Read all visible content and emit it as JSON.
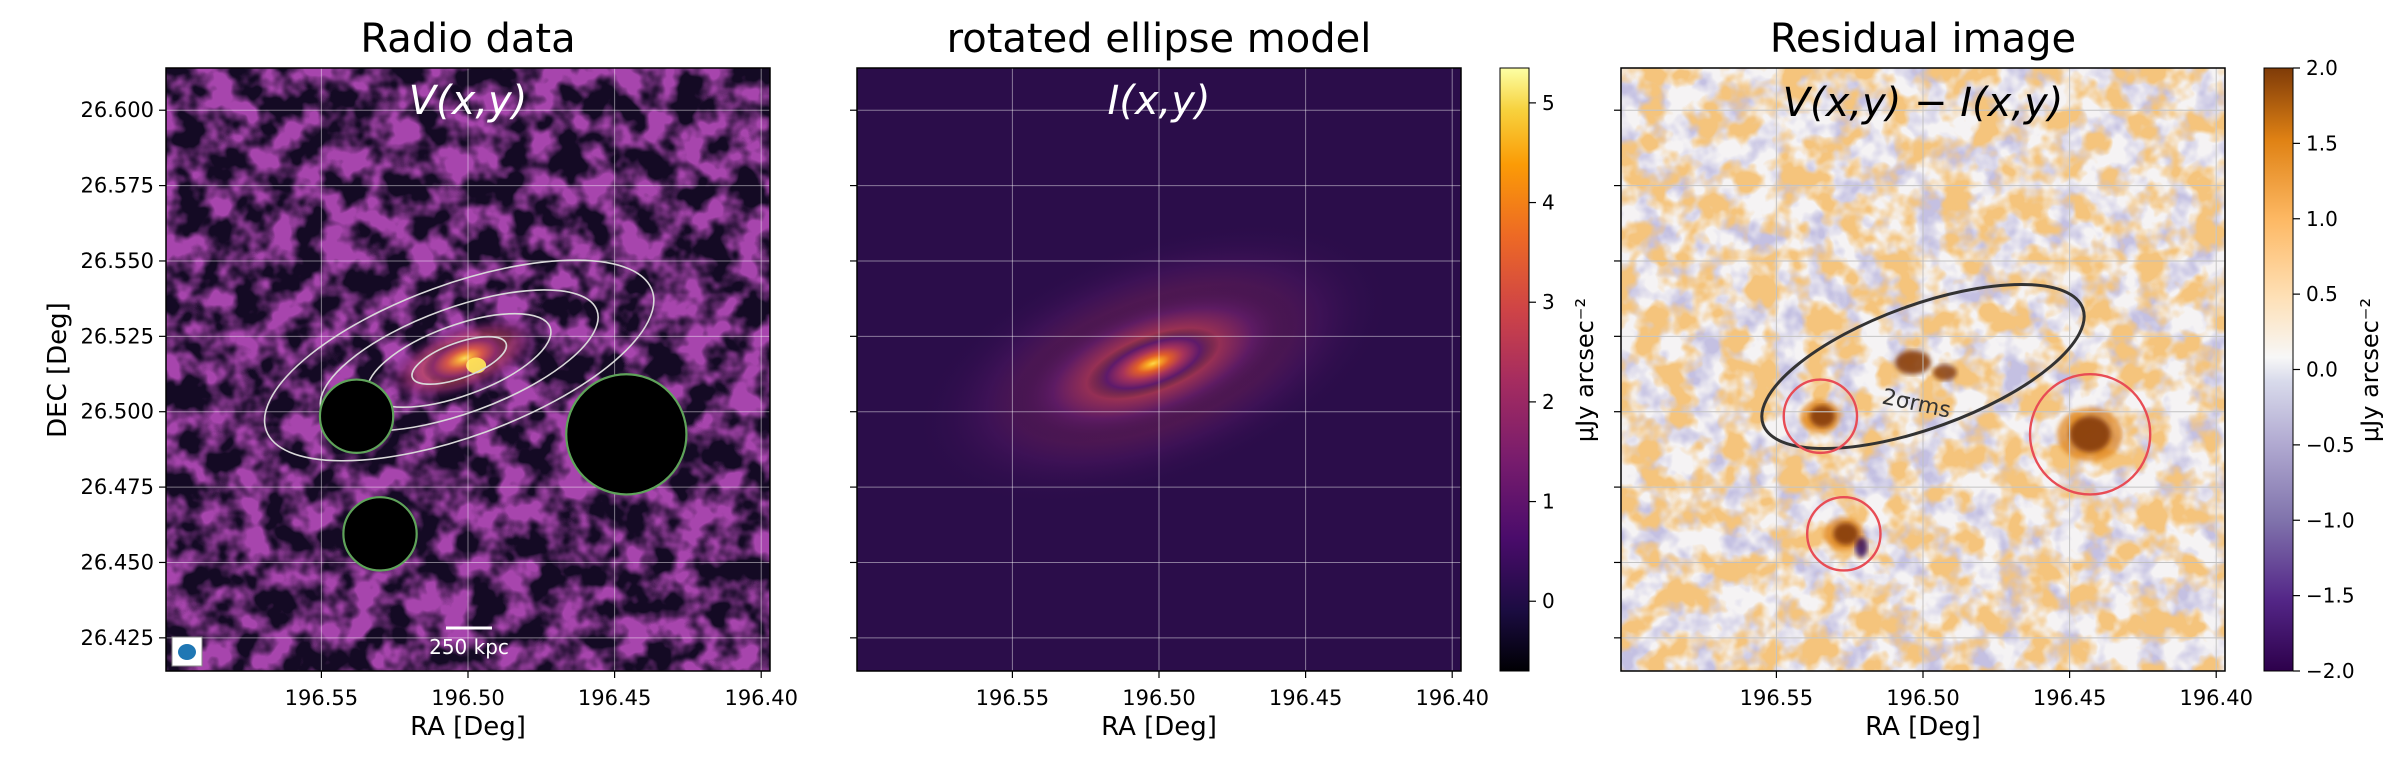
{
  "chart_data": [
    {
      "type": "heatmap",
      "title": "Radio data",
      "annotation": "V(x,y)",
      "xlabel": "RA [Deg]",
      "ylabel": "DEC [Deg]",
      "xlim": [
        196.603,
        196.397
      ],
      "ylim": [
        26.414,
        26.614
      ],
      "xticks": [
        196.55,
        196.5,
        196.45,
        196.4
      ],
      "xtick_labels": [
        "196.55",
        "196.50",
        "196.45",
        "196.40"
      ],
      "yticks": [
        26.425,
        26.45,
        26.475,
        26.5,
        26.525,
        26.55,
        26.575,
        26.6
      ],
      "ytick_labels": [
        "26.425",
        "26.450",
        "26.475",
        "26.500",
        "26.525",
        "26.550",
        "26.575",
        "26.600"
      ],
      "grid": true,
      "colormap": "inferno",
      "scalebar_label": "250 kpc",
      "contours": {
        "color": "#d9d9d9",
        "center": [
          196.503,
          26.517
        ],
        "angle_deg": -20,
        "radii": [
          [
            0.07,
            0.026
          ],
          [
            0.05,
            0.018
          ],
          [
            0.033,
            0.012
          ],
          [
            0.017,
            0.006
          ]
        ]
      },
      "masks": [
        {
          "ra": 196.538,
          "dec": 26.4985,
          "r": 0.0125,
          "color": "#5fa35a"
        },
        {
          "ra": 196.53,
          "dec": 26.4595,
          "r": 0.0125,
          "color": "#5fa35a"
        },
        {
          "ra": 196.446,
          "dec": 26.4925,
          "r": 0.0205,
          "color": "#5fa35a"
        }
      ],
      "beam_color": "#1f77b4"
    },
    {
      "type": "heatmap",
      "title": "rotated ellipse model",
      "annotation": "I(x,y)",
      "xlabel": "RA [Deg]",
      "xlim": [
        196.603,
        196.397
      ],
      "ylim": [
        26.414,
        26.614
      ],
      "xticks": [
        196.55,
        196.5,
        196.45,
        196.4
      ],
      "xtick_labels": [
        "196.55",
        "196.50",
        "196.45",
        "196.40"
      ],
      "grid": true,
      "colormap": "inferno",
      "model_center": [
        196.502,
        26.516
      ],
      "model_angle_deg": -20,
      "colorbar": {
        "label": "μJy arcsec⁻²",
        "range": [
          -0.7,
          5.35
        ],
        "ticks": [
          0,
          1,
          2,
          3,
          4,
          5
        ],
        "tick_labels": [
          "0",
          "1",
          "2",
          "3",
          "4",
          "5"
        ]
      }
    },
    {
      "type": "heatmap",
      "title": "Residual image",
      "annotation": "V(x,y) − I(x,y)",
      "xlabel": "RA [Deg]",
      "xlim": [
        196.603,
        196.397
      ],
      "ylim": [
        26.414,
        26.614
      ],
      "xticks": [
        196.55,
        196.5,
        196.45,
        196.4
      ],
      "xtick_labels": [
        "196.55",
        "196.50",
        "196.45",
        "196.40"
      ],
      "grid": true,
      "colormap": "PuOr_r",
      "contour_label": "2σrms",
      "contour_color": "#333333",
      "contour_ellipse": {
        "ra": 196.5,
        "dec": 26.515,
        "a": 0.058,
        "b": 0.021,
        "angle_deg": -20
      },
      "circles": [
        {
          "ra": 196.535,
          "dec": 26.4985,
          "r": 0.0125,
          "color": "#e84c55"
        },
        {
          "ra": 196.527,
          "dec": 26.4595,
          "r": 0.0125,
          "color": "#e84c55"
        },
        {
          "ra": 196.443,
          "dec": 26.4925,
          "r": 0.0205,
          "color": "#e84c55"
        }
      ],
      "colorbar": {
        "label": "μJy arcsec⁻²",
        "range": [
          -2.0,
          2.0
        ],
        "ticks": [
          -2.0,
          -1.5,
          -1.0,
          -0.5,
          0.0,
          0.5,
          1.0,
          1.5,
          2.0
        ],
        "tick_labels": [
          "−2.0",
          "−1.5",
          "−1.0",
          "−0.5",
          "0.0",
          "0.5",
          "1.0",
          "1.5",
          "2.0"
        ]
      }
    }
  ]
}
